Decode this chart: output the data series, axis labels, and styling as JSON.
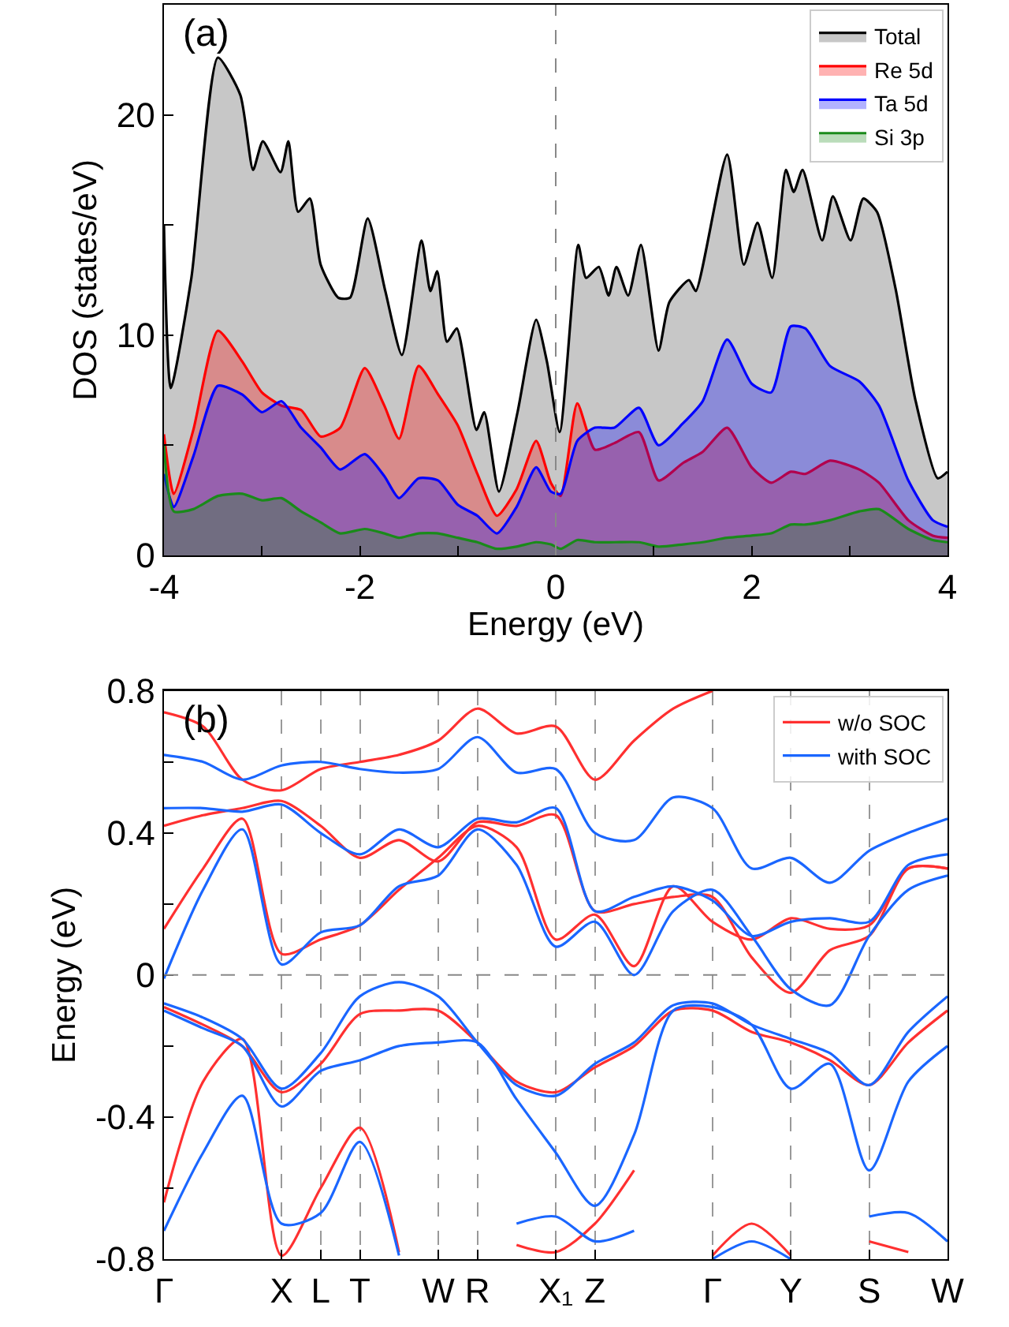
{
  "chart_data": [
    {
      "type": "area",
      "xlabel": "Energy (eV)",
      "ylabel": "DOS (states/eV)",
      "annotations": [
        "(a)"
      ],
      "legend": "top right",
      "grid": false,
      "xlim": [
        -4,
        4
      ],
      "xticks": [
        -4,
        {
          "value": -3,
          "label": null
        },
        -2,
        {
          "value": -1,
          "label": null
        },
        0,
        {
          "value": 1,
          "label": null
        },
        2,
        {
          "value": 3,
          "label": null
        },
        4
      ],
      "ylim": [
        0,
        25
      ],
      "yticks": [
        0,
        {
          "value": 5,
          "label": null
        },
        10,
        {
          "value": 15,
          "label": null
        },
        20
      ],
      "ref_lines": [
        {
          "axis": "x",
          "value": 0,
          "label": null,
          "color": "#888888",
          "line_style": "dashed"
        }
      ],
      "x": [
        -4,
        -3.9,
        -3.7,
        -3.45,
        -3.2,
        -3.0,
        -2.8,
        -2.6,
        -2.4,
        -2.2,
        -1.95,
        -1.75,
        -1.6,
        -1.4,
        -1.2,
        -1.0,
        -0.8,
        -0.6,
        -0.4,
        -0.2,
        -0.05,
        0.05,
        0.22,
        0.4,
        0.6,
        0.85,
        1.05,
        1.3,
        1.5,
        1.75,
        2.0,
        2.2,
        2.4,
        2.55,
        2.8,
        3.1,
        3.3,
        3.6,
        3.85,
        4
      ],
      "series": [
        {
          "name": "Total",
          "color": "#000000",
          "x": [
            -4,
            -3.93,
            -3.72,
            -3.45,
            -3.22,
            -3.09,
            -2.99,
            -2.81,
            -2.73,
            -2.63,
            -2.51,
            -2.4,
            -2.22,
            -2.1,
            -1.92,
            -1.74,
            -1.57,
            -1.37,
            -1.28,
            -1.21,
            -1.11,
            -1.01,
            -0.81,
            -0.73,
            -0.58,
            -0.39,
            -0.2,
            -0.09,
            0.04,
            0.23,
            0.31,
            0.44,
            0.54,
            0.62,
            0.74,
            0.87,
            1.05,
            1.16,
            1.36,
            1.43,
            1.75,
            1.92,
            2.06,
            2.21,
            2.35,
            2.43,
            2.52,
            2.72,
            2.83,
            3.01,
            3.14,
            3.28,
            3.47,
            3.67,
            3.9,
            4
          ],
          "values": [
            15,
            7.6,
            12.6,
            22.6,
            20.9,
            17.5,
            18.8,
            17.4,
            18.8,
            15.6,
            16.2,
            13.2,
            11.7,
            11.7,
            15.3,
            12,
            9.1,
            14.3,
            12,
            12.9,
            9.7,
            10.3,
            5.7,
            6.5,
            2.9,
            6.5,
            10.7,
            8.8,
            5.6,
            14.1,
            12.6,
            13.1,
            11.8,
            13.1,
            11.8,
            14.1,
            9.3,
            11.5,
            12.5,
            12,
            18.2,
            13.2,
            15.1,
            12.6,
            17.5,
            16.5,
            17.5,
            14.3,
            16.3,
            14.3,
            16.2,
            15.6,
            12.1,
            7.1,
            3.5,
            3.8
          ]
        },
        {
          "name": "Re 5d",
          "color": "#ff0000",
          "values": [
            5.5,
            2.8,
            5.7,
            10.2,
            8.8,
            7.4,
            6.8,
            6.6,
            5.4,
            5.8,
            8.5,
            6.8,
            5.3,
            8.6,
            7.3,
            5.9,
            3.7,
            1.8,
            3.0,
            5.2,
            3.3,
            2.7,
            6.9,
            4.8,
            5.1,
            5.6,
            3.4,
            4.2,
            4.7,
            5.8,
            4.0,
            3.3,
            3.8,
            3.7,
            4.3,
            3.9,
            3.3,
            1.6,
            0.9,
            0.8
          ]
        },
        {
          "name": "Ta 5d",
          "color": "#0000ff",
          "values": [
            3.7,
            2.2,
            4.5,
            7.7,
            7.3,
            6.5,
            7.0,
            5.8,
            4.9,
            3.9,
            4.6,
            3.6,
            2.6,
            3.5,
            3.4,
            2.3,
            1.8,
            1.0,
            2.2,
            4.0,
            2.9,
            2.8,
            5.2,
            5.8,
            5.8,
            6.7,
            5.0,
            6.0,
            7.0,
            9.8,
            7.8,
            7.4,
            10.4,
            10.3,
            8.6,
            7.9,
            6.8,
            3.4,
            1.6,
            1.3
          ]
        },
        {
          "name": "Si 3p",
          "color": "#1a8a1a",
          "values": [
            5.0,
            2.0,
            2.1,
            2.7,
            2.8,
            2.5,
            2.6,
            2.0,
            1.5,
            1.0,
            1.2,
            1.0,
            0.8,
            1.0,
            1.0,
            0.8,
            0.6,
            0.3,
            0.4,
            0.6,
            0.5,
            0.3,
            0.7,
            0.6,
            0.6,
            0.6,
            0.4,
            0.5,
            0.6,
            0.8,
            0.9,
            1.0,
            1.4,
            1.4,
            1.6,
            2.0,
            2.1,
            1.2,
            0.7,
            0.6
          ]
        }
      ]
    },
    {
      "type": "line",
      "ylabel": "Energy (eV)",
      "annotations": [
        "(b)"
      ],
      "legend": "top right",
      "grid": "x",
      "categories": [
        "Γ",
        null,
        null,
        "X",
        "L",
        "T",
        null,
        "W",
        "R",
        null,
        "X₁",
        "Z",
        null,
        null,
        "Γ",
        null,
        "Y",
        null,
        "S",
        null,
        "W"
      ],
      "ylim": [
        -0.8,
        0.8
      ],
      "yticks": [
        -0.8,
        {
          "value": -0.6,
          "label": null
        },
        -0.4,
        {
          "value": -0.2,
          "label": null
        },
        0,
        {
          "value": 0.2,
          "label": null
        },
        0.4,
        {
          "value": 0.6,
          "label": null
        },
        0.8
      ],
      "ref_lines": [
        {
          "axis": "y",
          "value": 0,
          "label": null,
          "color": "#888888",
          "line_style": "dashed"
        }
      ],
      "series": [
        {
          "name": "w/o SOC",
          "color": "#ff3030",
          "values": [
            -0.09,
            -0.14,
            -0.2,
            -0.33,
            -0.25,
            -0.11,
            -0.1,
            -0.1,
            -0.19,
            -0.3,
            -0.33,
            -0.26,
            -0.2,
            -0.1,
            -0.1,
            -0.16,
            -0.19,
            -0.24,
            -0.31,
            -0.19,
            -0.1
          ]
        },
        {
          "color": "#ff3030",
          "values": [
            0.13,
            0.3,
            0.44,
            0.06,
            0.1,
            0.14,
            0.24,
            0.33,
            0.42,
            0.36,
            0.1,
            0.17,
            0.025,
            0.25,
            0.15,
            0.1,
            0.16,
            0.13,
            0.14,
            0.3,
            0.3
          ]
        },
        {
          "color": "#ff3030",
          "values": [
            0.42,
            0.45,
            0.47,
            0.49,
            0.42,
            0.33,
            0.38,
            0.32,
            0.43,
            0.42,
            0.45,
            0.18,
            0.2,
            0.22,
            0.22,
            0.05,
            -0.05,
            0.07,
            0.11,
            0.3,
            0.3
          ]
        },
        {
          "color": "#ff3030",
          "values": [
            -0.64,
            -0.3,
            -0.18,
            -0.79,
            -0.6,
            -0.43,
            -0.78,
            null,
            null,
            -0.76,
            -0.78,
            -0.7,
            -0.55,
            null,
            -0.79,
            -0.7,
            -0.79,
            null,
            -0.75,
            -0.78,
            null
          ]
        },
        {
          "color": "#ff3030",
          "values": [
            0.74,
            0.7,
            0.55,
            0.52,
            0.58,
            0.6,
            0.62,
            0.66,
            0.75,
            0.68,
            0.7,
            0.55,
            0.66,
            0.75,
            0.8,
            null,
            null,
            null,
            null,
            null,
            null
          ]
        },
        {
          "name": "with SOC",
          "color": "#1a66ff",
          "values": [
            0.62,
            0.6,
            0.55,
            0.59,
            0.6,
            0.58,
            0.57,
            0.58,
            0.67,
            0.57,
            0.58,
            0.4,
            0.38,
            0.5,
            0.47,
            0.3,
            0.33,
            0.26,
            0.35,
            0.4,
            0.44
          ]
        },
        {
          "color": "#1a66ff",
          "values": [
            0.47,
            0.47,
            0.46,
            0.48,
            0.4,
            0.34,
            0.41,
            0.36,
            0.44,
            0.43,
            0.47,
            0.18,
            0.22,
            0.25,
            0.21,
            0.11,
            0.15,
            0.16,
            0.15,
            0.31,
            0.34
          ]
        },
        {
          "color": "#1a66ff",
          "values": [
            -0.01,
            0.24,
            0.41,
            0.03,
            0.12,
            0.14,
            0.25,
            0.28,
            0.41,
            0.31,
            0.08,
            0.15,
            0,
            0.18,
            0.24,
            0.11,
            -0.04,
            -0.085,
            0.11,
            0.24,
            0.28
          ]
        },
        {
          "color": "#1a66ff",
          "values": [
            -0.08,
            -0.12,
            -0.18,
            -0.32,
            -0.22,
            -0.06,
            -0.02,
            -0.06,
            -0.19,
            -0.31,
            -0.34,
            -0.25,
            -0.19,
            -0.085,
            -0.08,
            -0.14,
            -0.18,
            -0.22,
            -0.31,
            -0.16,
            -0.06
          ]
        },
        {
          "color": "#1a66ff",
          "values": [
            -0.1,
            -0.15,
            -0.2,
            -0.37,
            -0.27,
            -0.24,
            -0.2,
            -0.19,
            -0.19,
            -0.35,
            -0.5,
            -0.65,
            -0.45,
            -0.1,
            -0.09,
            -0.14,
            -0.32,
            -0.25,
            -0.55,
            -0.3,
            -0.2
          ]
        },
        {
          "color": "#1a66ff",
          "values": [
            -0.72,
            -0.5,
            -0.34,
            -0.7,
            -0.67,
            -0.47,
            -0.79,
            null,
            null,
            -0.7,
            -0.68,
            -0.75,
            -0.72,
            null,
            -0.8,
            -0.75,
            -0.8,
            null,
            -0.68,
            -0.67,
            -0.75
          ]
        }
      ]
    }
  ]
}
